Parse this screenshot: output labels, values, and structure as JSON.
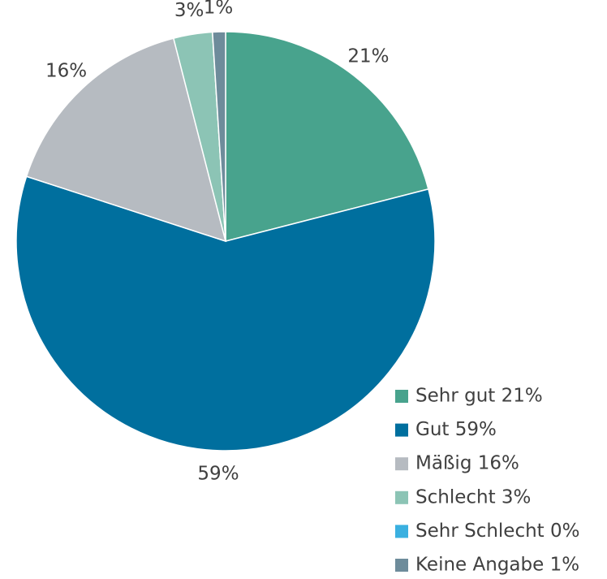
{
  "chart_data": {
    "type": "pie",
    "categories": [
      "Sehr gut 21%",
      "Gut 59%",
      "Mäßig 16%",
      "Schlecht 3%",
      "Sehr Schlecht 0%",
      "Keine Angabe 1%"
    ],
    "values": [
      21,
      59,
      16,
      3,
      0,
      1
    ],
    "value_labels": [
      "21%",
      "59%",
      "16%",
      "3%",
      null,
      "1%"
    ],
    "colors": [
      "#48a38d",
      "#006f9e",
      "#b6bbc1",
      "#8cc4b5",
      "#3ab0e0",
      "#6e8c9b"
    ],
    "legend": "bottom-right"
  }
}
